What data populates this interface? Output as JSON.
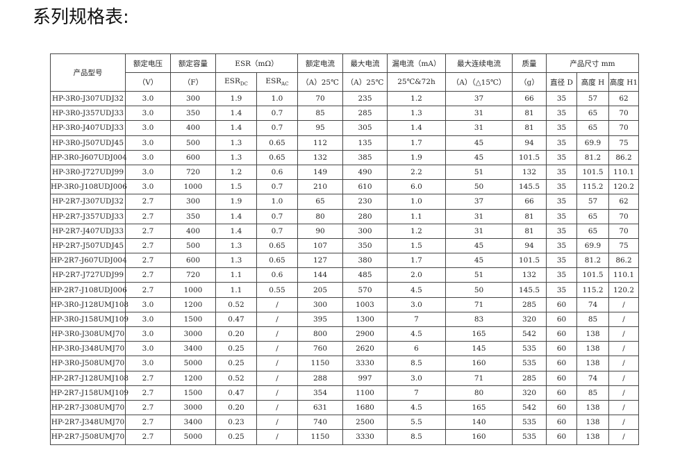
{
  "title": "系列规格表:",
  "header": {
    "model": "产品型号",
    "voltage": "额定电压",
    "voltage_unit": "（V）",
    "capacity": "额定容量",
    "capacity_unit": "（F）",
    "esr": "ESR（mΩ）",
    "esr_dc": "ESR",
    "esr_dc_sub": "DC",
    "esr_ac": "ESR",
    "esr_ac_sub": "AC",
    "rated_current": "额定电流",
    "rated_current_unit": "（A）25℃",
    "max_current": "最大电流",
    "max_current_unit": "（A）25℃",
    "leakage": "漏电流（mA）",
    "leakage_unit": "25℃&72h",
    "max_continuous": "最大连续电流",
    "max_continuous_unit": "（A）（△15℃）",
    "mass": "质量",
    "mass_unit": "（g）",
    "size": "产品尺寸 mm",
    "diameter": "直径 D",
    "height": "高度 H",
    "height1": "高度 H1"
  },
  "rows": [
    [
      "HP-3R0-J307UDJ32",
      "3.0",
      "300",
      "1.9",
      "1.0",
      "70",
      "235",
      "1.2",
      "37",
      "66",
      "35",
      "57",
      "62"
    ],
    [
      "HP-3R0-J357UDJ33",
      "3.0",
      "350",
      "1.4",
      "0.7",
      "85",
      "285",
      "1.3",
      "31",
      "81",
      "35",
      "65",
      "70"
    ],
    [
      "HP-3R0-J407UDJ33",
      "3.0",
      "400",
      "1.4",
      "0.7",
      "95",
      "305",
      "1.4",
      "31",
      "81",
      "35",
      "65",
      "70"
    ],
    [
      "HP-3R0-J507UDJ45",
      "3.0",
      "500",
      "1.3",
      "0.65",
      "112",
      "135",
      "1.7",
      "45",
      "94",
      "35",
      "69.9",
      "75"
    ],
    [
      "HP-3R0-J607UDJ004",
      "3.0",
      "600",
      "1.3",
      "0.65",
      "132",
      "385",
      "1.9",
      "45",
      "101.5",
      "35",
      "81.2",
      "86.2"
    ],
    [
      "HP-3R0-J727UDJ99",
      "3.0",
      "720",
      "1.2",
      "0.6",
      "149",
      "490",
      "2.2",
      "51",
      "132",
      "35",
      "101.5",
      "110.1"
    ],
    [
      "HP-3R0-J108UDJ006",
      "3.0",
      "1000",
      "1.5",
      "0.7",
      "210",
      "610",
      "6.0",
      "50",
      "145.5",
      "35",
      "115.2",
      "120.2"
    ],
    [
      "HP-2R7-J307UDJ32",
      "2.7",
      "300",
      "1.9",
      "1.0",
      "65",
      "230",
      "1.0",
      "37",
      "66",
      "35",
      "57",
      "62"
    ],
    [
      "HP-2R7-J357UDJ33",
      "2.7",
      "350",
      "1.4",
      "0.7",
      "80",
      "280",
      "1.1",
      "31",
      "81",
      "35",
      "65",
      "70"
    ],
    [
      "HP-2R7-J407UDJ33",
      "2.7",
      "400",
      "1.4",
      "0.7",
      "90",
      "300",
      "1.2",
      "31",
      "81",
      "35",
      "65",
      "70"
    ],
    [
      "HP-2R7-J507UDJ45",
      "2.7",
      "500",
      "1.3",
      "0.65",
      "107",
      "350",
      "1.5",
      "45",
      "94",
      "35",
      "69.9",
      "75"
    ],
    [
      "HP-2R7-J607UDJ004",
      "2.7",
      "600",
      "1.3",
      "0.65",
      "127",
      "380",
      "1.7",
      "45",
      "101.5",
      "35",
      "81.2",
      "86.2"
    ],
    [
      "HP-2R7-J727UDJ99",
      "2.7",
      "720",
      "1.1",
      "0.6",
      "144",
      "485",
      "2.0",
      "51",
      "132",
      "35",
      "101.5",
      "110.1"
    ],
    [
      "HP-2R7-J108UDJ006",
      "2.7",
      "1000",
      "1.1",
      "0.55",
      "205",
      "570",
      "4.5",
      "50",
      "145.5",
      "35",
      "115.2",
      "120.2"
    ],
    [
      "HP-3R0-J128UMJ108",
      "3.0",
      "1200",
      "0.52",
      "/",
      "300",
      "1003",
      "3.0",
      "71",
      "285",
      "60",
      "74",
      "/"
    ],
    [
      "HP-3R0-J158UMJ109",
      "3.0",
      "1500",
      "0.47",
      "/",
      "395",
      "1300",
      "7",
      "83",
      "320",
      "60",
      "85",
      "/"
    ],
    [
      "HP-3R0-J308UMJ70",
      "3.0",
      "3000",
      "0.20",
      "/",
      "800",
      "2900",
      "4.5",
      "165",
      "542",
      "60",
      "138",
      "/"
    ],
    [
      "HP-3R0-J348UMJ70",
      "3.0",
      "3400",
      "0.25",
      "/",
      "760",
      "2620",
      "6",
      "145",
      "535",
      "60",
      "138",
      "/"
    ],
    [
      "HP-3R0-J508UMJ70",
      "3.0",
      "5000",
      "0.25",
      "/",
      "1150",
      "3330",
      "8.5",
      "160",
      "535",
      "60",
      "138",
      "/"
    ],
    [
      "HP-2R7-J128UMJ108",
      "2.7",
      "1200",
      "0.52",
      "/",
      "288",
      "997",
      "3.0",
      "71",
      "285",
      "60",
      "74",
      "/"
    ],
    [
      "HP-2R7-J158UMJ109",
      "2.7",
      "1500",
      "0.47",
      "/",
      "354",
      "1100",
      "7",
      "80",
      "320",
      "60",
      "85",
      "/"
    ],
    [
      "HP-2R7-J308UMJ70",
      "2.7",
      "3000",
      "0.20",
      "/",
      "631",
      "1680",
      "4.5",
      "165",
      "542",
      "60",
      "138",
      "/"
    ],
    [
      "HP-2R7-J348UMJ70",
      "2.7",
      "3400",
      "0.23",
      "/",
      "740",
      "2500",
      "5.5",
      "140",
      "535",
      "60",
      "138",
      "/"
    ],
    [
      "HP-2R7-J508UMJ70",
      "2.7",
      "5000",
      "0.25",
      "/",
      "1150",
      "3330",
      "8.5",
      "160",
      "535",
      "60",
      "138",
      "/"
    ]
  ]
}
